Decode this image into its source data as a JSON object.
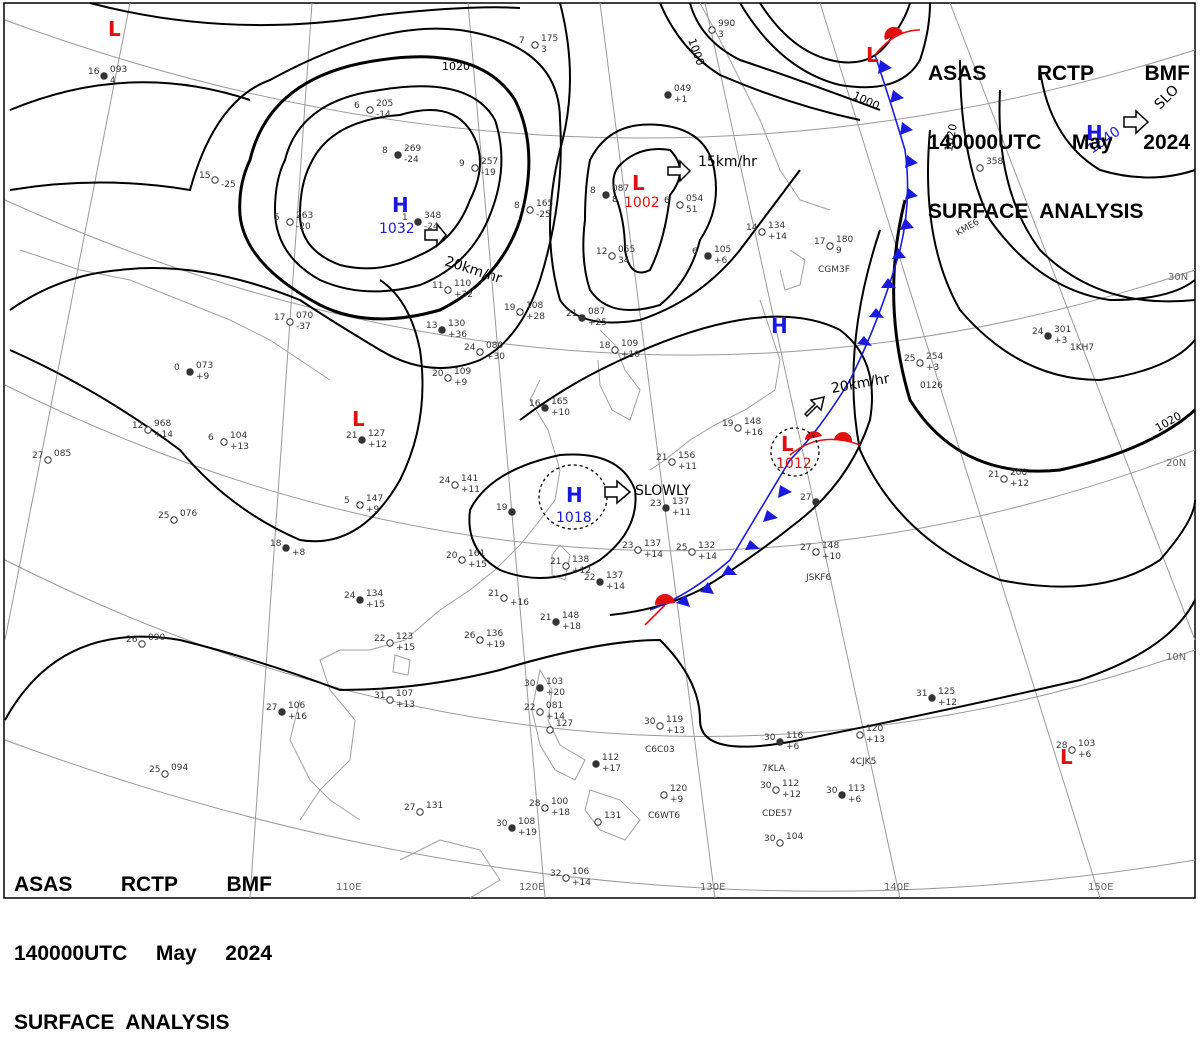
{
  "header": {
    "line1": [
      "ASAS",
      "RCTP",
      "BMF"
    ],
    "line2": [
      "140000UTC",
      "May",
      "2024"
    ],
    "line3": "SURFACE  ANALYSIS"
  },
  "pressure_centers": [
    {
      "type": "H",
      "value": "1032",
      "color": "#1a1adf"
    },
    {
      "type": "H",
      "value": "1040",
      "color": "#1a1adf"
    },
    {
      "type": "H",
      "value": "1018",
      "color": "#1a1adf"
    },
    {
      "type": "H",
      "value": "",
      "color": "#1a1adf"
    },
    {
      "type": "L",
      "value": "1002",
      "color": "#e01010"
    },
    {
      "type": "L",
      "value": "1012",
      "color": "#e01010"
    },
    {
      "type": "L",
      "value": "",
      "color": "#e01010"
    },
    {
      "type": "L",
      "value": "",
      "color": "#e01010"
    },
    {
      "type": "L",
      "value": "",
      "color": "#e01010"
    },
    {
      "type": "L",
      "value": "",
      "color": "#e01010"
    }
  ],
  "movement_labels": [
    "20km/hr",
    "15km/hr",
    "20km/hr",
    "SLOWLY",
    "SLO"
  ],
  "isobar_labels": [
    "1020",
    "1000",
    "1000",
    "1020",
    "1020"
  ],
  "lon_labels": [
    "110E",
    "120E",
    "130E",
    "140E",
    "150E"
  ],
  "lat_labels": [
    "30N",
    "20N",
    "10N"
  ],
  "stations": [
    {
      "t": "16",
      "p": "093",
      "d": "4"
    },
    {
      "t": "6",
      "p": "205",
      "d": "-14"
    },
    {
      "t": "15",
      "p": "",
      "d": "-25"
    },
    {
      "t": "8",
      "p": "269",
      "d": "-24"
    },
    {
      "t": "9",
      "p": "257",
      "d": "-19"
    },
    {
      "t": "5",
      "p": "263",
      "d": "-20"
    },
    {
      "t": "1",
      "p": "348",
      "d": "-24"
    },
    {
      "t": "17",
      "p": "070",
      "d": "-37"
    },
    {
      "t": "11",
      "p": "110",
      "d": "+32"
    },
    {
      "t": "13",
      "p": "130",
      "d": "+36"
    },
    {
      "t": "19",
      "p": "108",
      "d": "+28"
    },
    {
      "t": "24",
      "p": "080",
      "d": "+30"
    },
    {
      "t": "21",
      "p": "087",
      "d": "+25"
    },
    {
      "t": "8",
      "p": "165",
      "d": "-25"
    },
    {
      "t": "7",
      "p": "175",
      "d": "3"
    },
    {
      "t": "8",
      "p": "087",
      "d": "8"
    },
    {
      "t": "6",
      "p": "054",
      "d": "51"
    },
    {
      "t": "12",
      "p": "055",
      "d": "34"
    },
    {
      "t": "6",
      "p": "105",
      "d": "+6"
    },
    {
      "t": "14",
      "p": "134",
      "d": "+14"
    },
    {
      "t": "17",
      "p": "180",
      "d": "9"
    },
    {
      "t": "0",
      "p": "073",
      "d": "+9"
    },
    {
      "t": "20",
      "p": "109",
      "d": "+9"
    },
    {
      "t": "18",
      "p": "109",
      "d": "+10"
    },
    {
      "t": "16",
      "p": "165",
      "d": "+10"
    },
    {
      "t": "12",
      "p": "968",
      "d": "+14"
    },
    {
      "t": "6",
      "p": "104",
      "d": "+13"
    },
    {
      "t": "21",
      "p": "127",
      "d": "+12"
    },
    {
      "t": "27",
      "p": "085",
      "d": ""
    },
    {
      "t": "24",
      "p": "141",
      "d": "+11"
    },
    {
      "t": "19",
      "p": "",
      "d": ""
    },
    {
      "t": "5",
      "p": "147",
      "d": "+9"
    },
    {
      "t": "25",
      "p": "076",
      "d": ""
    },
    {
      "t": "18",
      "p": "",
      "d": "+8"
    },
    {
      "t": "20",
      "p": "161",
      "d": "+15"
    },
    {
      "t": "21",
      "p": "138",
      "d": "+12"
    },
    {
      "t": "22",
      "p": "137",
      "d": "+14"
    },
    {
      "t": "23",
      "p": "137",
      "d": "+14"
    },
    {
      "t": "25",
      "p": "132",
      "d": "+14"
    },
    {
      "t": "23",
      "p": "137",
      "d": "+11"
    },
    {
      "t": "21",
      "p": "156",
      "d": "+11"
    },
    {
      "t": "19",
      "p": "148",
      "d": "+16"
    },
    {
      "t": "27",
      "p": "",
      "d": ""
    },
    {
      "t": "27",
      "p": "148",
      "d": "+10"
    },
    {
      "t": "21",
      "p": "",
      "d": "+16"
    },
    {
      "t": "21",
      "p": "148",
      "d": "+18"
    },
    {
      "t": "26",
      "p": "136",
      "d": "+19"
    },
    {
      "t": "22",
      "p": "123",
      "d": "+15"
    },
    {
      "t": "24",
      "p": "134",
      "d": "+15"
    },
    {
      "t": "26",
      "p": "090",
      "d": ""
    },
    {
      "t": "31",
      "p": "107",
      "d": "+13"
    },
    {
      "t": "27",
      "p": "106",
      "d": "+16"
    },
    {
      "t": "25",
      "p": "094",
      "d": ""
    },
    {
      "t": "27",
      "p": "131",
      "d": ""
    },
    {
      "t": "30",
      "p": "103",
      "d": "+20"
    },
    {
      "t": "22",
      "p": "081",
      "d": "+14"
    },
    {
      "t": "",
      "p": "127",
      "d": ""
    },
    {
      "t": "",
      "p": "112",
      "d": "+17"
    },
    {
      "t": "30",
      "p": "119",
      "d": "+13"
    },
    {
      "t": "",
      "p": "120",
      "d": "+9"
    },
    {
      "t": "30",
      "p": "116",
      "d": "+6"
    },
    {
      "t": "",
      "p": "120",
      "d": "+13"
    },
    {
      "t": "30",
      "p": "112",
      "d": "+12"
    },
    {
      "t": "30",
      "p": "113",
      "d": "+6"
    },
    {
      "t": "30",
      "p": "104",
      "d": ""
    },
    {
      "t": "28",
      "p": "100",
      "d": "+18"
    },
    {
      "t": "30",
      "p": "108",
      "d": "+19"
    },
    {
      "t": "",
      "p": "131",
      "d": ""
    },
    {
      "t": "32",
      "p": "106",
      "d": "+14"
    },
    {
      "t": "31",
      "p": "125",
      "d": "+12"
    },
    {
      "t": "21",
      "p": "200",
      "d": "+12"
    },
    {
      "t": "25",
      "p": "254",
      "d": "+3"
    },
    {
      "t": "24",
      "p": "301",
      "d": "+3"
    },
    {
      "t": "28",
      "p": "103",
      "d": "+6"
    },
    {
      "t": "",
      "p": "358",
      "d": ""
    },
    {
      "t": "",
      "p": "049",
      "d": "+1"
    },
    {
      "t": "",
      "p": "990",
      "d": "3"
    }
  ],
  "ship_ids": [
    "CGM3F",
    "1KH7",
    "0126",
    "KME6",
    "JSKF6",
    "C6C03",
    "7KLA",
    "4CJK5",
    "CDE57",
    "C6WT6"
  ],
  "colors": {
    "isobar": "#000000",
    "high": "#1a1adf",
    "low": "#e01010",
    "cold_front": "#1a1adf",
    "warm_front": "#e01010",
    "grid": "#9a9a9a",
    "coast": "#a0a0a0"
  }
}
